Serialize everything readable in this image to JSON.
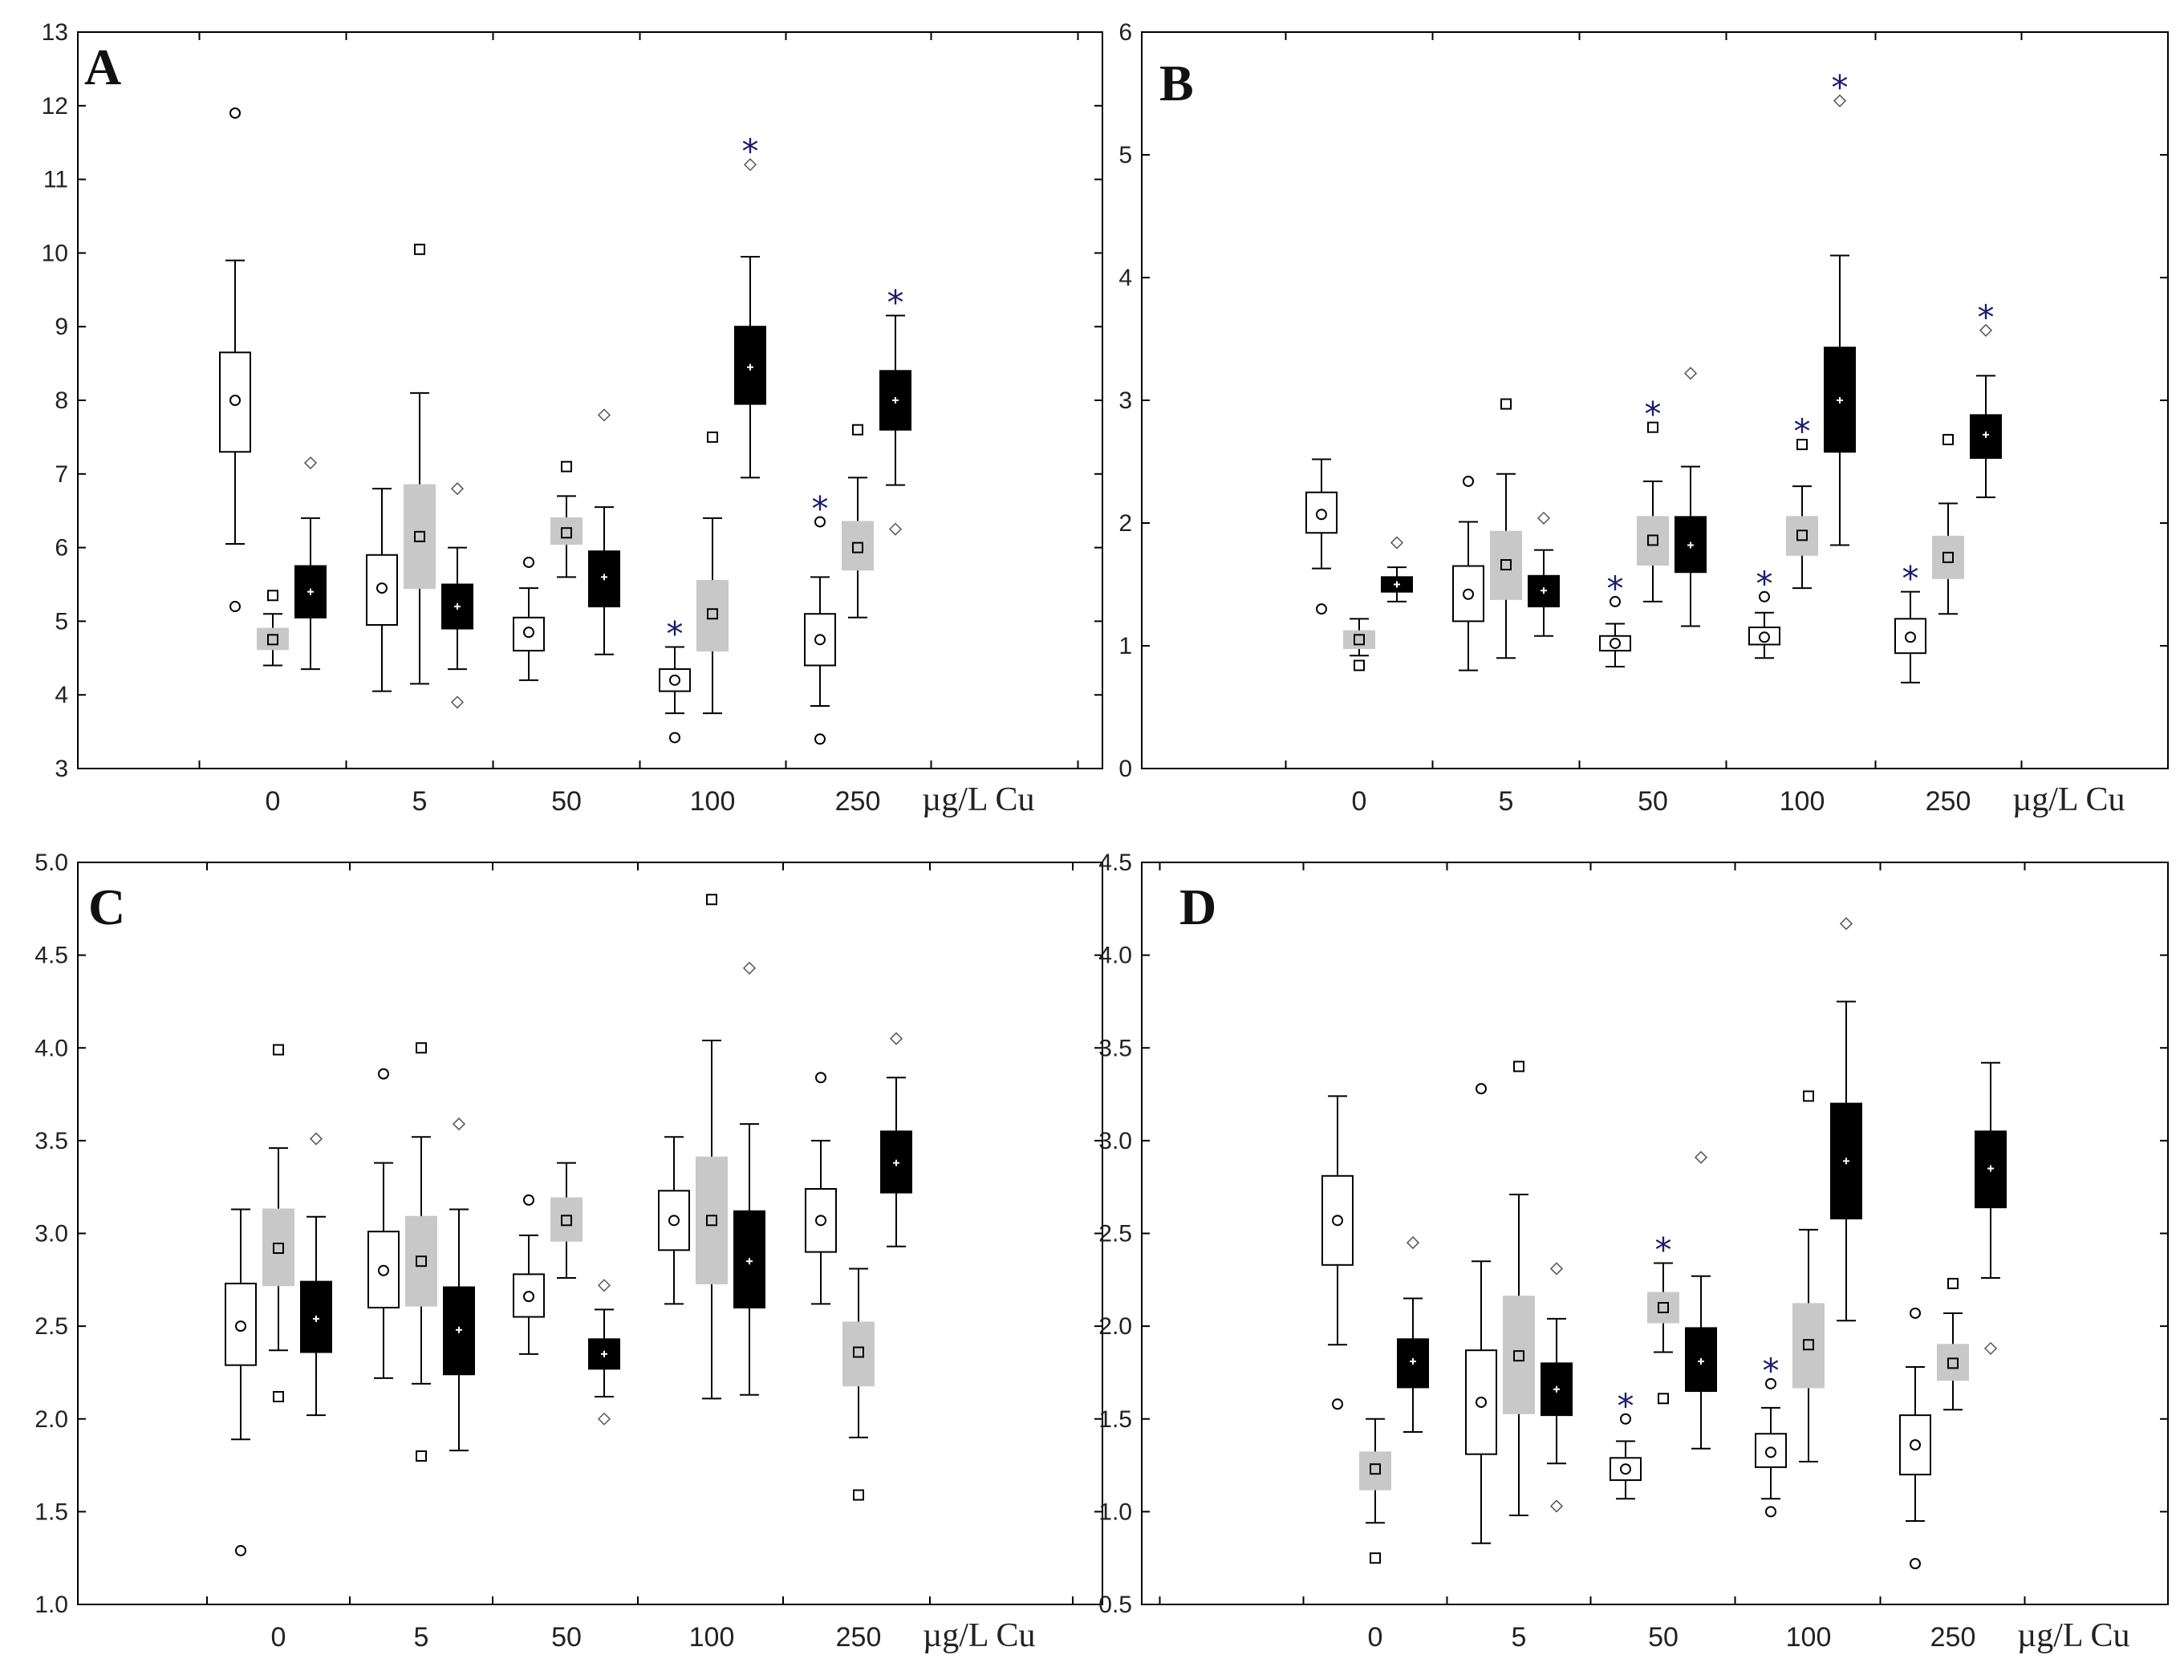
{
  "chart_data": [
    {
      "type": "box",
      "label": "A",
      "unit_label": "µg/L Cu",
      "categories": [
        "0",
        "5",
        "50",
        "100",
        "250"
      ],
      "ylim": [
        3,
        13
      ],
      "yticks": [
        "3",
        "4",
        "5",
        "6",
        "7",
        "8",
        "9",
        "10",
        "11",
        "12",
        "13"
      ],
      "series": [
        {
          "name": "white",
          "color": "#ffffff",
          "median_marker": "circle",
          "boxes": [
            {
              "whisker_low": 6.05,
              "q1": 7.3,
              "median": 8.0,
              "q3": 8.65,
              "whisker_high": 9.9,
              "outliers": [
                11.9,
                5.2
              ],
              "sig": false
            },
            {
              "whisker_low": 4.05,
              "q1": 4.95,
              "median": 5.45,
              "q3": 5.9,
              "whisker_high": 6.8,
              "outliers": [],
              "sig": false
            },
            {
              "whisker_low": 4.2,
              "q1": 4.6,
              "median": 4.85,
              "q3": 5.05,
              "whisker_high": 5.45,
              "outliers": [
                5.8
              ],
              "sig": false
            },
            {
              "whisker_low": 3.75,
              "q1": 4.05,
              "median": 4.2,
              "q3": 4.35,
              "whisker_high": 4.65,
              "outliers": [
                3.42
              ],
              "sig": true
            },
            {
              "whisker_low": 3.85,
              "q1": 4.4,
              "median": 4.75,
              "q3": 5.1,
              "whisker_high": 5.6,
              "outliers": [
                6.35,
                3.4
              ],
              "sig": true
            }
          ]
        },
        {
          "name": "gray",
          "color": "#c8c8c8",
          "median_marker": "square",
          "boxes": [
            {
              "whisker_low": 4.4,
              "q1": 4.62,
              "median": 4.75,
              "q3": 4.9,
              "whisker_high": 5.1,
              "outliers": [
                5.35
              ],
              "sig": false
            },
            {
              "whisker_low": 4.15,
              "q1": 5.45,
              "median": 6.15,
              "q3": 6.85,
              "whisker_high": 8.1,
              "outliers": [
                10.05
              ],
              "sig": false
            },
            {
              "whisker_low": 5.6,
              "q1": 6.05,
              "median": 6.2,
              "q3": 6.4,
              "whisker_high": 6.7,
              "outliers": [
                7.1
              ],
              "sig": false
            },
            {
              "whisker_low": 3.75,
              "q1": 4.6,
              "median": 5.1,
              "q3": 5.55,
              "whisker_high": 6.4,
              "outliers": [
                7.5
              ],
              "sig": false
            },
            {
              "whisker_low": 5.05,
              "q1": 5.7,
              "median": 6.0,
              "q3": 6.35,
              "whisker_high": 6.95,
              "outliers": [
                7.6
              ],
              "sig": false
            }
          ]
        },
        {
          "name": "black",
          "color": "#000000",
          "median_marker": "plus",
          "boxes": [
            {
              "whisker_low": 4.35,
              "q1": 5.05,
              "median": 5.4,
              "q3": 5.75,
              "whisker_high": 6.4,
              "outliers": [
                7.15
              ],
              "sig": false
            },
            {
              "whisker_low": 4.35,
              "q1": 4.9,
              "median": 5.2,
              "q3": 5.5,
              "whisker_high": 6.0,
              "outliers": [
                6.8,
                3.9
              ],
              "sig": false
            },
            {
              "whisker_low": 4.55,
              "q1": 5.2,
              "median": 5.6,
              "q3": 5.95,
              "whisker_high": 6.55,
              "outliers": [
                7.8
              ],
              "sig": false
            },
            {
              "whisker_low": 6.95,
              "q1": 7.95,
              "median": 8.45,
              "q3": 9.0,
              "whisker_high": 9.95,
              "outliers": [
                11.2
              ],
              "sig": true
            },
            {
              "whisker_low": 6.85,
              "q1": 7.6,
              "median": 8.0,
              "q3": 8.4,
              "whisker_high": 9.15,
              "outliers": [
                6.25
              ],
              "sig": true
            }
          ]
        }
      ]
    },
    {
      "type": "box",
      "label": "B",
      "unit_label": "µg/L Cu",
      "categories": [
        "0",
        "5",
        "50",
        "100",
        "250"
      ],
      "ylim": [
        0,
        6
      ],
      "yticks": [
        "0",
        "1",
        "2",
        "3",
        "4",
        "5",
        "6"
      ],
      "series": [
        {
          "name": "white",
          "color": "#ffffff",
          "median_marker": "circle",
          "boxes": [
            {
              "whisker_low": 1.63,
              "q1": 1.92,
              "median": 2.07,
              "q3": 2.25,
              "whisker_high": 2.52,
              "outliers": [
                1.3
              ],
              "sig": false
            },
            {
              "whisker_low": 0.8,
              "q1": 1.2,
              "median": 1.42,
              "q3": 1.65,
              "whisker_high": 2.01,
              "outliers": [
                2.34
              ],
              "sig": false
            },
            {
              "whisker_low": 0.83,
              "q1": 0.96,
              "median": 1.02,
              "q3": 1.08,
              "whisker_high": 1.18,
              "outliers": [
                1.36
              ],
              "sig": true
            },
            {
              "whisker_low": 0.9,
              "q1": 1.01,
              "median": 1.07,
              "q3": 1.15,
              "whisker_high": 1.27,
              "outliers": [
                1.4
              ],
              "sig": true
            },
            {
              "whisker_low": 0.7,
              "q1": 0.94,
              "median": 1.07,
              "q3": 1.22,
              "whisker_high": 1.44,
              "outliers": [],
              "sig": true
            }
          ]
        },
        {
          "name": "gray",
          "color": "#c8c8c8",
          "median_marker": "square",
          "boxes": [
            {
              "whisker_low": 0.92,
              "q1": 0.98,
              "median": 1.05,
              "q3": 1.12,
              "whisker_high": 1.22,
              "outliers": [
                0.84
              ],
              "sig": false
            },
            {
              "whisker_low": 0.9,
              "q1": 1.38,
              "median": 1.66,
              "q3": 1.93,
              "whisker_high": 2.4,
              "outliers": [
                2.97
              ],
              "sig": false
            },
            {
              "whisker_low": 1.36,
              "q1": 1.66,
              "median": 1.86,
              "q3": 2.05,
              "whisker_high": 2.34,
              "outliers": [
                2.78
              ],
              "sig": true
            },
            {
              "whisker_low": 1.47,
              "q1": 1.74,
              "median": 1.9,
              "q3": 2.05,
              "whisker_high": 2.3,
              "outliers": [
                2.64
              ],
              "sig": true
            },
            {
              "whisker_low": 1.26,
              "q1": 1.55,
              "median": 1.72,
              "q3": 1.89,
              "whisker_high": 2.16,
              "outliers": [
                2.68
              ],
              "sig": false
            }
          ]
        },
        {
          "name": "black",
          "color": "#000000",
          "median_marker": "plus",
          "boxes": [
            {
              "whisker_low": 1.36,
              "q1": 1.44,
              "median": 1.5,
              "q3": 1.56,
              "whisker_high": 1.64,
              "outliers": [
                1.84
              ],
              "sig": false
            },
            {
              "whisker_low": 1.08,
              "q1": 1.32,
              "median": 1.45,
              "q3": 1.57,
              "whisker_high": 1.78,
              "outliers": [
                2.04
              ],
              "sig": false
            },
            {
              "whisker_low": 1.16,
              "q1": 1.6,
              "median": 1.82,
              "q3": 2.05,
              "whisker_high": 2.46,
              "outliers": [
                3.22
              ],
              "sig": false
            },
            {
              "whisker_low": 1.82,
              "q1": 2.58,
              "median": 3.0,
              "q3": 3.43,
              "whisker_high": 4.18,
              "outliers": [
                5.44
              ],
              "sig": true
            },
            {
              "whisker_low": 2.21,
              "q1": 2.53,
              "median": 2.72,
              "q3": 2.88,
              "whisker_high": 3.2,
              "outliers": [
                3.57
              ],
              "sig": true
            }
          ]
        }
      ]
    },
    {
      "type": "box",
      "label": "C",
      "unit_label": "µg/L Cu",
      "categories": [
        "0",
        "5",
        "50",
        "100",
        "250"
      ],
      "ylim": [
        1.0,
        5.0
      ],
      "yticks": [
        "1.0",
        "1.5",
        "2.0",
        "2.5",
        "3.0",
        "3.5",
        "4.0",
        "4.5",
        "5.0"
      ],
      "series": [
        {
          "name": "white",
          "color": "#ffffff",
          "median_marker": "circle",
          "boxes": [
            {
              "whisker_low": 1.89,
              "q1": 2.29,
              "median": 2.5,
              "q3": 2.73,
              "whisker_high": 3.13,
              "outliers": [
                1.29
              ],
              "sig": false
            },
            {
              "whisker_low": 2.22,
              "q1": 2.6,
              "median": 2.8,
              "q3": 3.01,
              "whisker_high": 3.38,
              "outliers": [
                3.86
              ],
              "sig": false
            },
            {
              "whisker_low": 2.35,
              "q1": 2.55,
              "median": 2.66,
              "q3": 2.78,
              "whisker_high": 2.99,
              "outliers": [
                3.18
              ],
              "sig": false
            },
            {
              "whisker_low": 2.62,
              "q1": 2.91,
              "median": 3.07,
              "q3": 3.23,
              "whisker_high": 3.52,
              "outliers": [],
              "sig": false
            },
            {
              "whisker_low": 2.62,
              "q1": 2.9,
              "median": 3.07,
              "q3": 3.24,
              "whisker_high": 3.5,
              "outliers": [
                3.84
              ],
              "sig": false
            }
          ]
        },
        {
          "name": "gray",
          "color": "#c8c8c8",
          "median_marker": "square",
          "boxes": [
            {
              "whisker_low": 2.37,
              "q1": 2.72,
              "median": 2.92,
              "q3": 3.13,
              "whisker_high": 3.46,
              "outliers": [
                3.99,
                2.12
              ],
              "sig": false
            },
            {
              "whisker_low": 2.19,
              "q1": 2.61,
              "median": 2.85,
              "q3": 3.09,
              "whisker_high": 3.52,
              "outliers": [
                4.0,
                1.8
              ],
              "sig": false
            },
            {
              "whisker_low": 2.76,
              "q1": 2.96,
              "median": 3.07,
              "q3": 3.19,
              "whisker_high": 3.38,
              "outliers": [],
              "sig": false
            },
            {
              "whisker_low": 2.11,
              "q1": 2.73,
              "median": 3.07,
              "q3": 3.41,
              "whisker_high": 4.04,
              "outliers": [
                4.8
              ],
              "sig": false
            },
            {
              "whisker_low": 1.9,
              "q1": 2.18,
              "median": 2.36,
              "q3": 2.52,
              "whisker_high": 2.81,
              "outliers": [
                1.59
              ],
              "sig": false
            }
          ]
        },
        {
          "name": "black",
          "color": "#000000",
          "median_marker": "plus",
          "boxes": [
            {
              "whisker_low": 2.02,
              "q1": 2.36,
              "median": 2.54,
              "q3": 2.74,
              "whisker_high": 3.09,
              "outliers": [
                3.51
              ],
              "sig": false
            },
            {
              "whisker_low": 1.83,
              "q1": 2.24,
              "median": 2.48,
              "q3": 2.71,
              "whisker_high": 3.13,
              "outliers": [
                3.59
              ],
              "sig": false
            },
            {
              "whisker_low": 2.12,
              "q1": 2.27,
              "median": 2.35,
              "q3": 2.43,
              "whisker_high": 2.59,
              "outliers": [
                2.72,
                2.0
              ],
              "sig": false
            },
            {
              "whisker_low": 2.13,
              "q1": 2.6,
              "median": 2.85,
              "q3": 3.12,
              "whisker_high": 3.59,
              "outliers": [
                4.43
              ],
              "sig": false
            },
            {
              "whisker_low": 2.93,
              "q1": 3.22,
              "median": 3.38,
              "q3": 3.55,
              "whisker_high": 3.84,
              "outliers": [
                4.05
              ],
              "sig": false
            }
          ]
        }
      ]
    },
    {
      "type": "box",
      "label": "D",
      "unit_label": "µg/L Cu",
      "categories": [
        "0",
        "5",
        "50",
        "100",
        "250"
      ],
      "ylim": [
        0.5,
        4.5
      ],
      "yticks": [
        "0.5",
        "1.0",
        "1.5",
        "2.0",
        "2.5",
        "3.0",
        "3.5",
        "4.0",
        "4.5"
      ],
      "series": [
        {
          "name": "white",
          "color": "#ffffff",
          "median_marker": "circle",
          "boxes": [
            {
              "whisker_low": 1.9,
              "q1": 2.33,
              "median": 2.57,
              "q3": 2.81,
              "whisker_high": 3.24,
              "outliers": [
                1.58
              ],
              "sig": false
            },
            {
              "whisker_low": 0.83,
              "q1": 1.31,
              "median": 1.59,
              "q3": 1.87,
              "whisker_high": 2.35,
              "outliers": [
                3.28
              ],
              "sig": false
            },
            {
              "whisker_low": 1.07,
              "q1": 1.17,
              "median": 1.23,
              "q3": 1.29,
              "whisker_high": 1.38,
              "outliers": [
                1.5
              ],
              "sig": true
            },
            {
              "whisker_low": 1.07,
              "q1": 1.24,
              "median": 1.32,
              "q3": 1.42,
              "whisker_high": 1.56,
              "outliers": [
                1.69,
                1.0
              ],
              "sig": true
            },
            {
              "whisker_low": 0.95,
              "q1": 1.2,
              "median": 1.36,
              "q3": 1.52,
              "whisker_high": 1.78,
              "outliers": [
                2.07,
                0.72
              ],
              "sig": false
            }
          ]
        },
        {
          "name": "gray",
          "color": "#c8c8c8",
          "median_marker": "square",
          "boxes": [
            {
              "whisker_low": 0.94,
              "q1": 1.12,
              "median": 1.23,
              "q3": 1.32,
              "whisker_high": 1.5,
              "outliers": [
                0.75
              ],
              "sig": false
            },
            {
              "whisker_low": 0.98,
              "q1": 1.53,
              "median": 1.84,
              "q3": 2.16,
              "whisker_high": 2.71,
              "outliers": [
                3.4
              ],
              "sig": false
            },
            {
              "whisker_low": 1.86,
              "q1": 2.02,
              "median": 2.1,
              "q3": 2.18,
              "whisker_high": 2.34,
              "outliers": [
                1.61
              ],
              "sig": true
            },
            {
              "whisker_low": 1.27,
              "q1": 1.67,
              "median": 1.9,
              "q3": 2.12,
              "whisker_high": 2.52,
              "outliers": [
                3.24
              ],
              "sig": false
            },
            {
              "whisker_low": 1.55,
              "q1": 1.71,
              "median": 1.8,
              "q3": 1.9,
              "whisker_high": 2.07,
              "outliers": [
                2.23
              ],
              "sig": false
            }
          ]
        },
        {
          "name": "black",
          "color": "#000000",
          "median_marker": "plus",
          "boxes": [
            {
              "whisker_low": 1.43,
              "q1": 1.67,
              "median": 1.81,
              "q3": 1.93,
              "whisker_high": 2.15,
              "outliers": [
                2.45
              ],
              "sig": false
            },
            {
              "whisker_low": 1.26,
              "q1": 1.52,
              "median": 1.66,
              "q3": 1.8,
              "whisker_high": 2.04,
              "outliers": [
                2.31,
                1.03
              ],
              "sig": false
            },
            {
              "whisker_low": 1.34,
              "q1": 1.65,
              "median": 1.81,
              "q3": 1.99,
              "whisker_high": 2.27,
              "outliers": [
                2.91
              ],
              "sig": false
            },
            {
              "whisker_low": 2.03,
              "q1": 2.58,
              "median": 2.89,
              "q3": 3.2,
              "whisker_high": 3.75,
              "outliers": [
                4.17
              ],
              "sig": false
            },
            {
              "whisker_low": 2.26,
              "q1": 2.64,
              "median": 2.85,
              "q3": 3.05,
              "whisker_high": 3.42,
              "outliers": [
                1.88
              ],
              "sig": false
            }
          ]
        }
      ]
    }
  ]
}
